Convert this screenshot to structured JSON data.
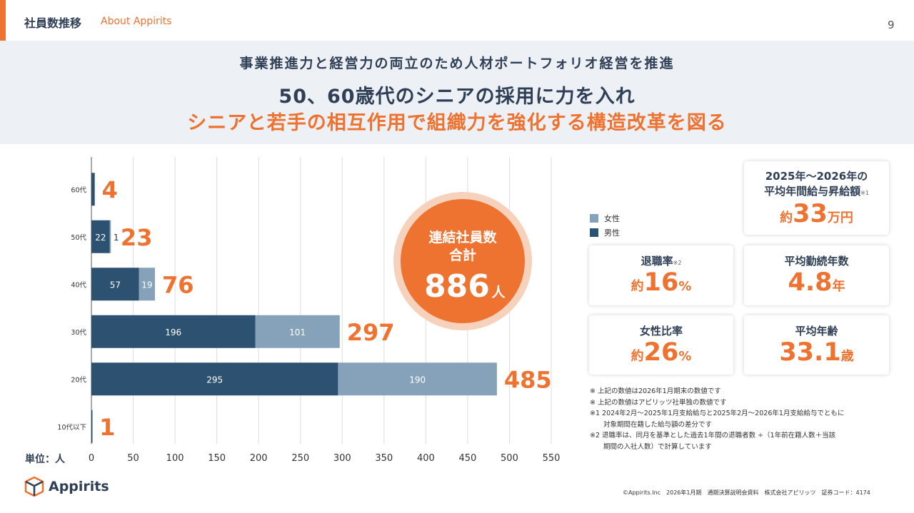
{
  "header": {
    "title": "社員数推移",
    "subtitle": "About Appirits",
    "page": "9"
  },
  "banner": {
    "line1": "事業推進力と経営力の両立のため人材ポートフォリオ経営を推進",
    "line2": "50、60歳代のシニアの採用に力を入れ",
    "line3": "シニアと若手の相互作用で組織力を強化する構造改革を図る"
  },
  "chart_data": {
    "type": "bar",
    "orientation": "horizontal",
    "stacked": true,
    "categories": [
      "60代",
      "50代",
      "40代",
      "30代",
      "20代",
      "10代以下"
    ],
    "series": [
      {
        "name": "男性",
        "values": [
          4,
          22,
          57,
          196,
          295,
          1
        ],
        "labels": [
          "",
          "22",
          "57",
          "196",
          "295",
          ""
        ],
        "color": "#2d5170"
      },
      {
        "name": "女性",
        "values": [
          0,
          1,
          19,
          101,
          190,
          0
        ],
        "labels": [
          "",
          "1",
          "19",
          "101",
          "190",
          ""
        ],
        "color": "#86a2bb"
      }
    ],
    "totals": [
      4,
      23,
      76,
      297,
      485,
      1
    ],
    "xlim": [
      0,
      550
    ],
    "xticks": [
      "0",
      "50",
      "100",
      "150",
      "200",
      "250",
      "300",
      "350",
      "400",
      "450",
      "500",
      "550"
    ],
    "xlabel": "単位：人",
    "grid": true
  },
  "circle": {
    "line1": "連結社員数",
    "line2": "合計",
    "value": "886",
    "unit": "人"
  },
  "legend": {
    "female": "女性",
    "male": "男性"
  },
  "cards": {
    "raise": {
      "label1": "2025年〜2026年の",
      "label2": "平均年間給与昇給額",
      "note": "※1",
      "prefix": "約",
      "value": "33",
      "unit": "万円"
    },
    "turnover": {
      "label": "退職率",
      "note": "※2",
      "prefix": "約",
      "value": "16",
      "unit": "%"
    },
    "tenure": {
      "label": "平均勤続年数",
      "value": "4.8",
      "unit": "年"
    },
    "female": {
      "label": "女性比率",
      "prefix": "約",
      "value": "26",
      "unit": "%"
    },
    "age": {
      "label": "平均年齢",
      "value": "33.1",
      "unit": "歳"
    }
  },
  "notes": [
    "※ 上記の数値は2026年1月期末の数値です",
    "※ 上記の数値はアピリッツ社単独の数値です",
    "※1 2024年2月〜2025年1月支給給与と2025年2月〜2026年1月支給給与でともに",
    "　　対象期間在籍した給与額の差分です",
    "※2 退職率は、同月を基準とした過去1年間の退職者数 ÷（1年前在籍人数＋当該",
    "　　期間の入社人数）で計算しています"
  ],
  "logo": {
    "text": "Appirits"
  },
  "footer": "©Appirits.Inc　2026年1月期　通期決算説明会資料　株式会社アピリッツ　証券コード：4174",
  "colors": {
    "accent": "#ee7230",
    "navy": "#2d5170",
    "light": "#86a2bb"
  }
}
